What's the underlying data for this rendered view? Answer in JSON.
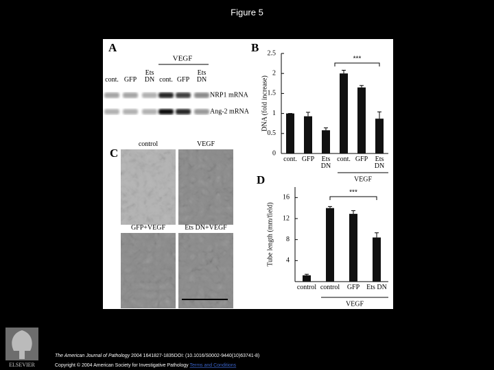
{
  "title": "Figure 5",
  "panels": {
    "A": {
      "label": "A",
      "group": "VEGF",
      "lanes": [
        "cont.",
        "GFP",
        "Ets DN",
        "cont.",
        "GFP",
        "Ets DN"
      ],
      "rows": [
        "NRP1 mRNA",
        "Ang-2 mRNA"
      ]
    },
    "C": {
      "label": "C",
      "images": [
        "control",
        "VEGF",
        "GFP+VEGF",
        "Ets DN+VEGF"
      ]
    }
  },
  "chart_data": [
    {
      "type": "bar",
      "panel_label": "B",
      "ylabel": "DNA (fold increase)",
      "group": "VEGF",
      "annotation": "***",
      "categories": [
        "cont.",
        "GFP",
        "Ets DN",
        "cont.",
        "GFP",
        "Ets DN"
      ],
      "values": [
        1.0,
        0.93,
        0.58,
        2.0,
        1.65,
        0.87
      ],
      "errors": [
        0.0,
        0.1,
        0.06,
        0.08,
        0.05,
        0.17
      ],
      "color": "#111111",
      "ylim": [
        0,
        2.5
      ],
      "yticks": [
        0,
        0.5,
        1,
        1.5,
        2,
        2.5
      ],
      "grid": false
    },
    {
      "type": "bar",
      "panel_label": "D",
      "ylabel": "Tube length (mm/field)",
      "group": "VEGF",
      "annotation": "***",
      "categories": [
        "control",
        "control",
        "GFP",
        "Ets DN"
      ],
      "values": [
        1.2,
        14,
        12.9,
        8.4
      ],
      "errors": [
        0.2,
        0.3,
        0.6,
        0.9
      ],
      "color": "#111111",
      "ylim": [
        0,
        18
      ],
      "yticks": [
        4,
        8,
        12,
        16
      ],
      "grid": false
    }
  ],
  "footer": {
    "journal": "The American Journal of Pathology",
    "citation": "2004 1641827-1835DOI: (10.1016/S0002-9440(10)63741-8)",
    "copyright": "Copyright © 2004 American Society for Investigative Pathology",
    "link": "Terms and Conditions"
  },
  "publisher": "ELSEVIER"
}
